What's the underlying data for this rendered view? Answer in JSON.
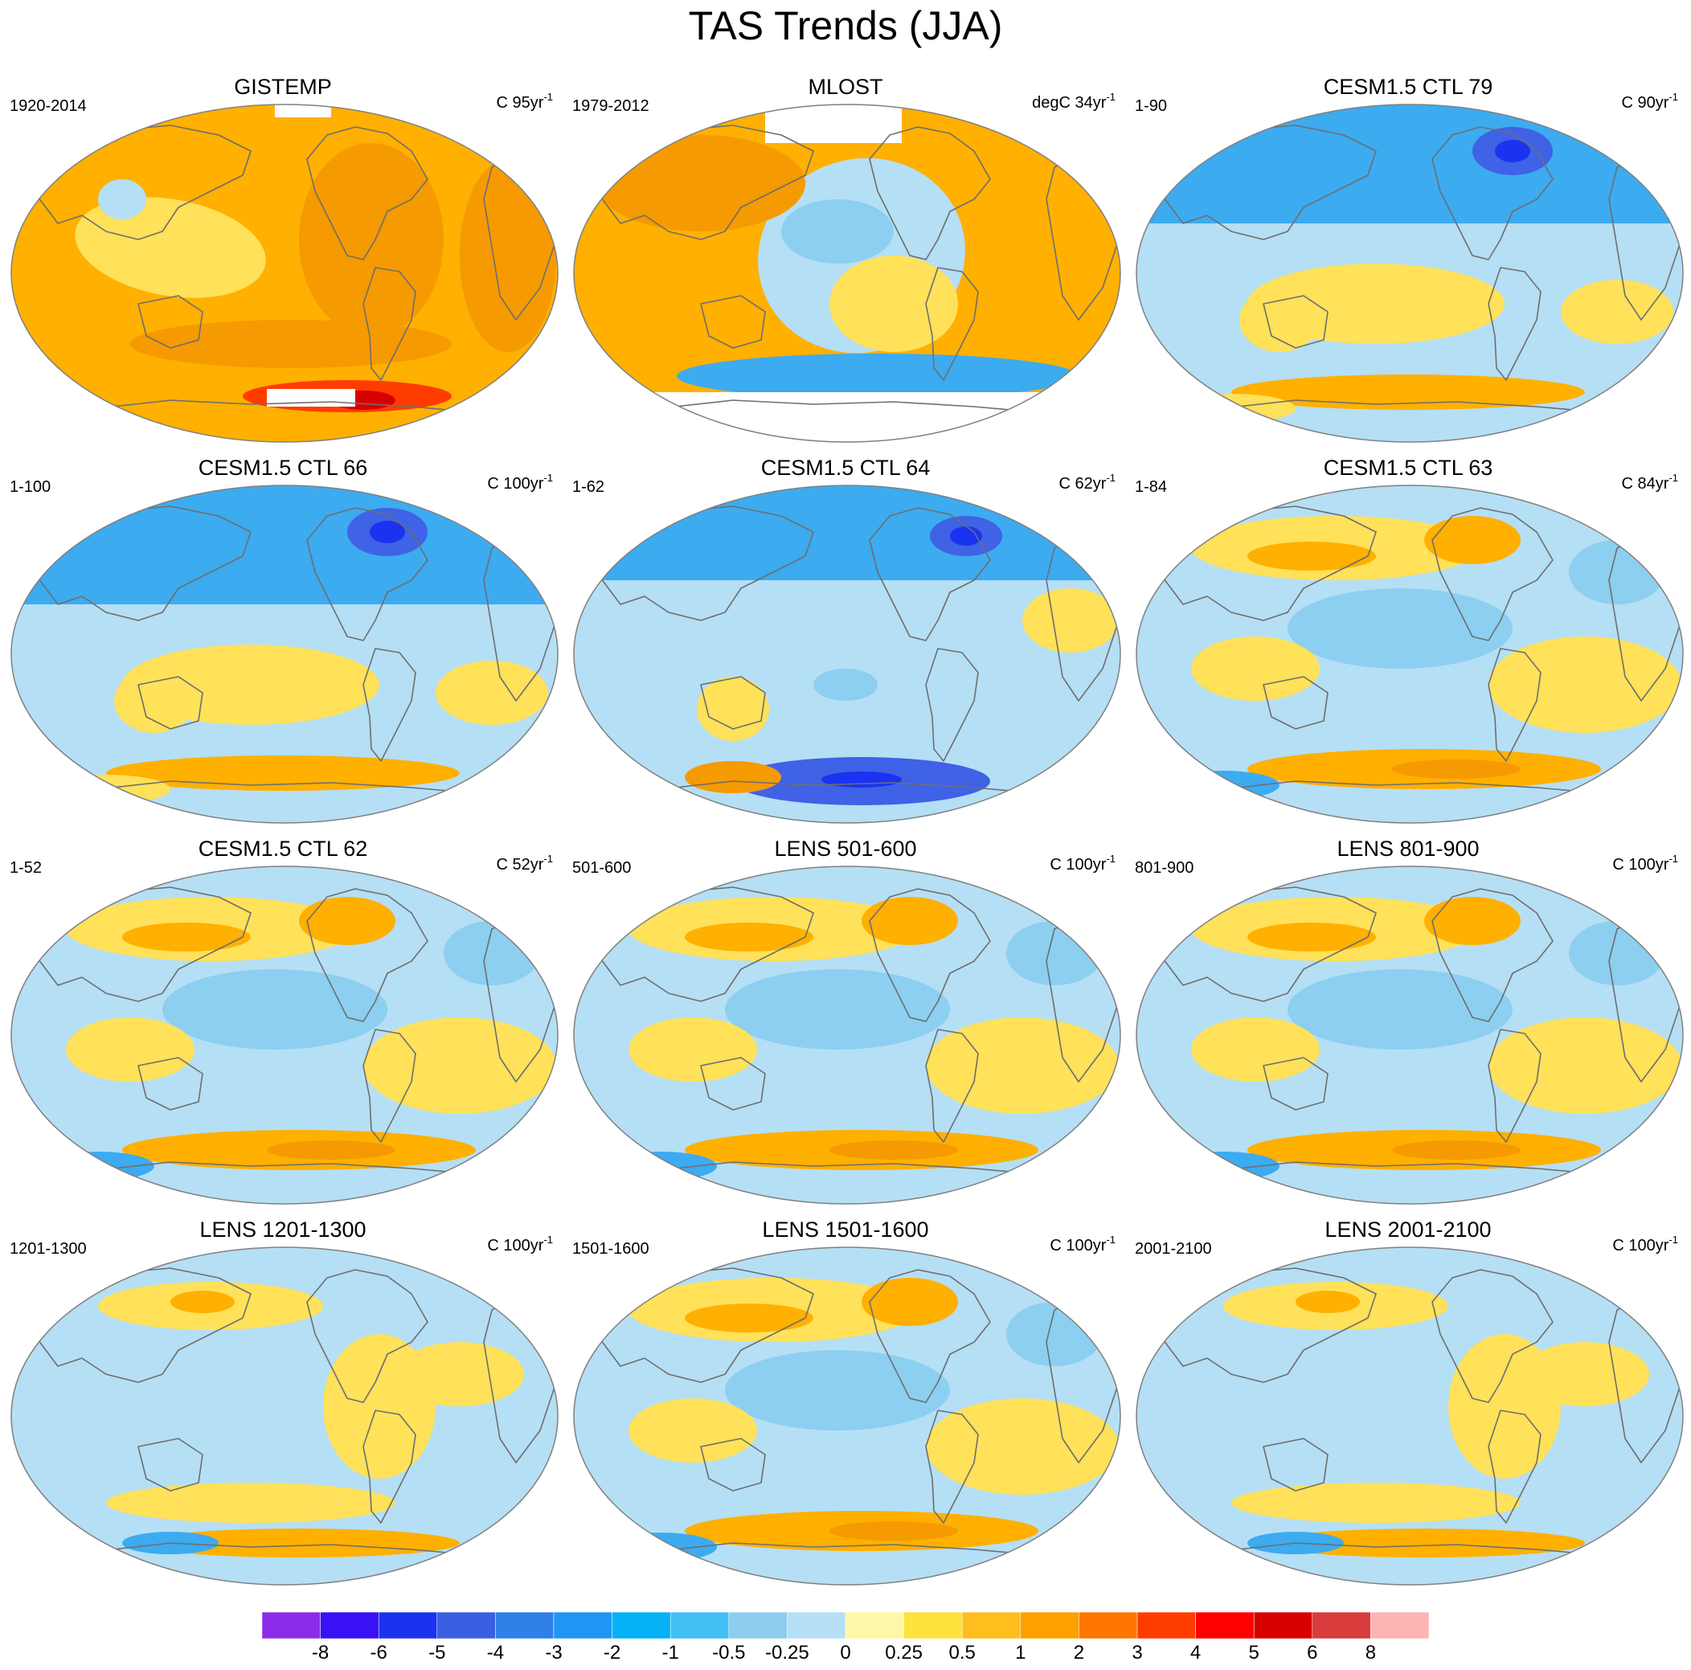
{
  "title": "TAS Trends (JJA)",
  "colors": {
    "warm": "#ffb000",
    "warm_deep": "#f59a00",
    "warm_light": "#ffe15a",
    "cool": "#b5dff5",
    "cool_mid": "#8ccff0",
    "cool_deep": "#3cabf0",
    "cold": "#3f62e6",
    "coast": "#6e6e6e",
    "missing": "#ffffff"
  },
  "panels": [
    {
      "name": "GISTEMP",
      "period": "1920-2014",
      "units": "C 95yr",
      "units_exp": "-1",
      "regime": "warm"
    },
    {
      "name": "MLOST",
      "period": "1979-2012",
      "units": "degC 34yr",
      "units_exp": "-1",
      "regime": "mixed-warm"
    },
    {
      "name": "CESM1.5 CTL 79",
      "period": "1-90",
      "units": "C 90yr",
      "units_exp": "-1",
      "regime": "cool-north"
    },
    {
      "name": "CESM1.5 CTL 66",
      "period": "1-100",
      "units": "C 100yr",
      "units_exp": "-1",
      "regime": "cool-north"
    },
    {
      "name": "CESM1.5 CTL 64",
      "period": "1-62",
      "units": "C 62yr",
      "units_exp": "-1",
      "regime": "cool-south"
    },
    {
      "name": "CESM1.5 CTL 63",
      "period": "1-84",
      "units": "C 84yr",
      "units_exp": "-1",
      "regime": "mixed"
    },
    {
      "name": "CESM1.5 CTL 62",
      "period": "1-52",
      "units": "C 52yr",
      "units_exp": "-1",
      "regime": "mixed"
    },
    {
      "name": "LENS 501-600",
      "period": "501-600",
      "units": "C 100yr",
      "units_exp": "-1",
      "regime": "mixed"
    },
    {
      "name": "LENS 801-900",
      "period": "801-900",
      "units": "C 100yr",
      "units_exp": "-1",
      "regime": "mixed"
    },
    {
      "name": "LENS 1201-1300",
      "period": "1201-1300",
      "units": "C 100yr",
      "units_exp": "-1",
      "regime": "mixed-cool"
    },
    {
      "name": "LENS 1501-1600",
      "period": "1501-1600",
      "units": "C 100yr",
      "units_exp": "-1",
      "regime": "mixed"
    },
    {
      "name": "LENS 2001-2100",
      "period": "2001-2100",
      "units": "C 100yr",
      "units_exp": "-1",
      "regime": "mixed-cool"
    }
  ],
  "colorbar": {
    "colors": [
      "#8a2be8",
      "#3a10f5",
      "#1a33f0",
      "#3a5fe0",
      "#3080ea",
      "#1e96f5",
      "#05b2f5",
      "#40c0f5",
      "#8ecdee",
      "#b5dff5",
      "#fff7a8",
      "#ffe23c",
      "#ffbe1e",
      "#ff9f00",
      "#ff7600",
      "#ff3c00",
      "#ff0000",
      "#d80000",
      "#d83c3c",
      "#ffb4b4"
    ],
    "labels": [
      "-8",
      "-6",
      "-5",
      "-4",
      "-3",
      "-2",
      "-1",
      "-0.5",
      "-0.25",
      "0",
      "0.25",
      "0.5",
      "1",
      "2",
      "3",
      "4",
      "5",
      "6",
      "8"
    ]
  }
}
